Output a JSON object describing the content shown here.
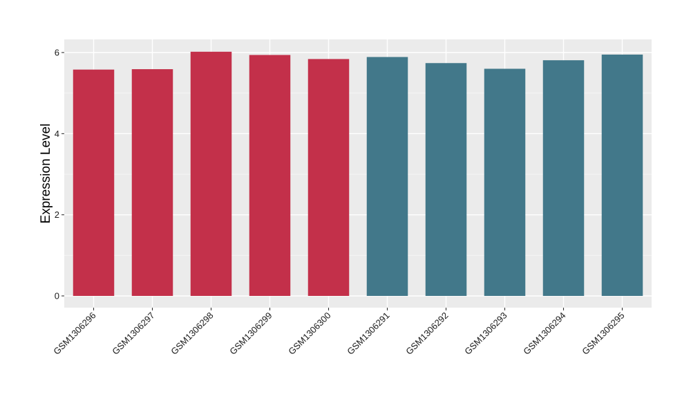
{
  "chart_data": {
    "type": "bar",
    "title": "",
    "xlabel": "",
    "ylabel": "Expression Level",
    "ylim": [
      0,
      6.3
    ],
    "yticks": [
      0,
      2,
      4,
      6
    ],
    "grid": true,
    "background": "#ebebeb",
    "categories": [
      "GSM1306296",
      "GSM1306297",
      "GSM1306298",
      "GSM1306299",
      "GSM1306300",
      "GSM1306291",
      "GSM1306292",
      "GSM1306293",
      "GSM1306294",
      "GSM1306295"
    ],
    "values": [
      5.58,
      5.59,
      6.02,
      5.94,
      5.84,
      5.89,
      5.74,
      5.6,
      5.81,
      5.95
    ],
    "bar_colors": [
      "#c3304a",
      "#c3304a",
      "#c3304a",
      "#c3304a",
      "#c3304a",
      "#42788a",
      "#42788a",
      "#42788a",
      "#42788a",
      "#42788a"
    ]
  }
}
